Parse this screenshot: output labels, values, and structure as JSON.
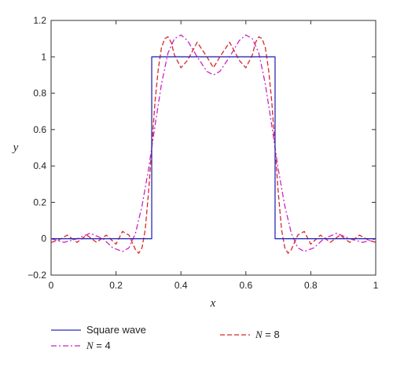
{
  "chart_data": {
    "type": "line",
    "xlabel": "x",
    "ylabel": "y",
    "xlim": [
      0,
      1
    ],
    "ylim": [
      -0.2,
      1.2
    ],
    "xticks": [
      0,
      0.2,
      0.4,
      0.6,
      0.8,
      1
    ],
    "xtick_labels": [
      "0",
      "0.2",
      "0.4",
      "0.6",
      "0.8",
      "1"
    ],
    "yticks": [
      -0.2,
      0,
      0.2,
      0.4,
      0.6,
      0.8,
      1,
      1.2
    ],
    "ytick_labels": [
      "−0.2",
      "0",
      "0.2",
      "0.4",
      "0.6",
      "0.8",
      "1",
      "1.2"
    ],
    "grid": false,
    "legend_position": "bottom",
    "series": [
      {
        "name": "Square wave",
        "legend_label": "Square wave",
        "color": "#2b2bb8",
        "style": "solid",
        "points": [
          [
            0,
            0
          ],
          [
            0.31,
            0
          ],
          [
            0.31,
            1
          ],
          [
            0.69,
            1
          ],
          [
            0.69,
            0
          ],
          [
            1,
            0
          ]
        ]
      },
      {
        "name": "N = 8",
        "legend_label": "N = 8",
        "color": "#d62728",
        "style": "dashed",
        "points": [
          [
            0,
            -0.02
          ],
          [
            0.02,
            -0.01
          ],
          [
            0.05,
            0.02
          ],
          [
            0.08,
            -0.02
          ],
          [
            0.11,
            0.02
          ],
          [
            0.14,
            -0.02
          ],
          [
            0.17,
            0.02
          ],
          [
            0.2,
            -0.03
          ],
          [
            0.22,
            0.04
          ],
          [
            0.24,
            0.02
          ],
          [
            0.26,
            -0.06
          ],
          [
            0.27,
            -0.08
          ],
          [
            0.28,
            -0.05
          ],
          [
            0.29,
            0.05
          ],
          [
            0.3,
            0.25
          ],
          [
            0.31,
            0.5
          ],
          [
            0.32,
            0.75
          ],
          [
            0.33,
            0.93
          ],
          [
            0.34,
            1.05
          ],
          [
            0.35,
            1.1
          ],
          [
            0.36,
            1.11
          ],
          [
            0.37,
            1.08
          ],
          [
            0.38,
            1.01
          ],
          [
            0.4,
            0.94
          ],
          [
            0.42,
            0.98
          ],
          [
            0.45,
            1.08
          ],
          [
            0.48,
            1.0
          ],
          [
            0.5,
            0.94
          ],
          [
            0.52,
            1.0
          ],
          [
            0.55,
            1.08
          ],
          [
            0.58,
            0.98
          ],
          [
            0.6,
            0.94
          ],
          [
            0.62,
            1.01
          ],
          [
            0.63,
            1.08
          ],
          [
            0.64,
            1.11
          ],
          [
            0.65,
            1.1
          ],
          [
            0.66,
            1.05
          ],
          [
            0.67,
            0.93
          ],
          [
            0.68,
            0.75
          ],
          [
            0.69,
            0.5
          ],
          [
            0.7,
            0.25
          ],
          [
            0.71,
            0.05
          ],
          [
            0.72,
            -0.05
          ],
          [
            0.73,
            -0.08
          ],
          [
            0.74,
            -0.06
          ],
          [
            0.76,
            0.02
          ],
          [
            0.78,
            0.04
          ],
          [
            0.8,
            -0.03
          ],
          [
            0.83,
            0.02
          ],
          [
            0.86,
            -0.02
          ],
          [
            0.89,
            0.02
          ],
          [
            0.92,
            -0.02
          ],
          [
            0.95,
            0.02
          ],
          [
            0.98,
            -0.01
          ],
          [
            1,
            -0.02
          ]
        ]
      },
      {
        "name": "N = 4",
        "legend_label": "N = 4",
        "color": "#cc22cc",
        "style": "dashdot",
        "points": [
          [
            0,
            0
          ],
          [
            0.04,
            -0.02
          ],
          [
            0.08,
            0.0
          ],
          [
            0.12,
            0.03
          ],
          [
            0.16,
            0.0
          ],
          [
            0.19,
            -0.05
          ],
          [
            0.22,
            -0.07
          ],
          [
            0.24,
            -0.05
          ],
          [
            0.26,
            0.03
          ],
          [
            0.28,
            0.18
          ],
          [
            0.3,
            0.38
          ],
          [
            0.32,
            0.62
          ],
          [
            0.34,
            0.85
          ],
          [
            0.36,
            1.02
          ],
          [
            0.38,
            1.1
          ],
          [
            0.4,
            1.12
          ],
          [
            0.42,
            1.09
          ],
          [
            0.45,
            1.0
          ],
          [
            0.48,
            0.92
          ],
          [
            0.5,
            0.9
          ],
          [
            0.52,
            0.92
          ],
          [
            0.55,
            1.0
          ],
          [
            0.58,
            1.09
          ],
          [
            0.6,
            1.12
          ],
          [
            0.62,
            1.1
          ],
          [
            0.64,
            1.02
          ],
          [
            0.66,
            0.85
          ],
          [
            0.68,
            0.62
          ],
          [
            0.7,
            0.38
          ],
          [
            0.72,
            0.18
          ],
          [
            0.74,
            0.03
          ],
          [
            0.76,
            -0.05
          ],
          [
            0.78,
            -0.07
          ],
          [
            0.81,
            -0.05
          ],
          [
            0.84,
            0.0
          ],
          [
            0.88,
            0.03
          ],
          [
            0.92,
            0.0
          ],
          [
            0.96,
            -0.02
          ],
          [
            1,
            0
          ]
        ]
      }
    ]
  }
}
